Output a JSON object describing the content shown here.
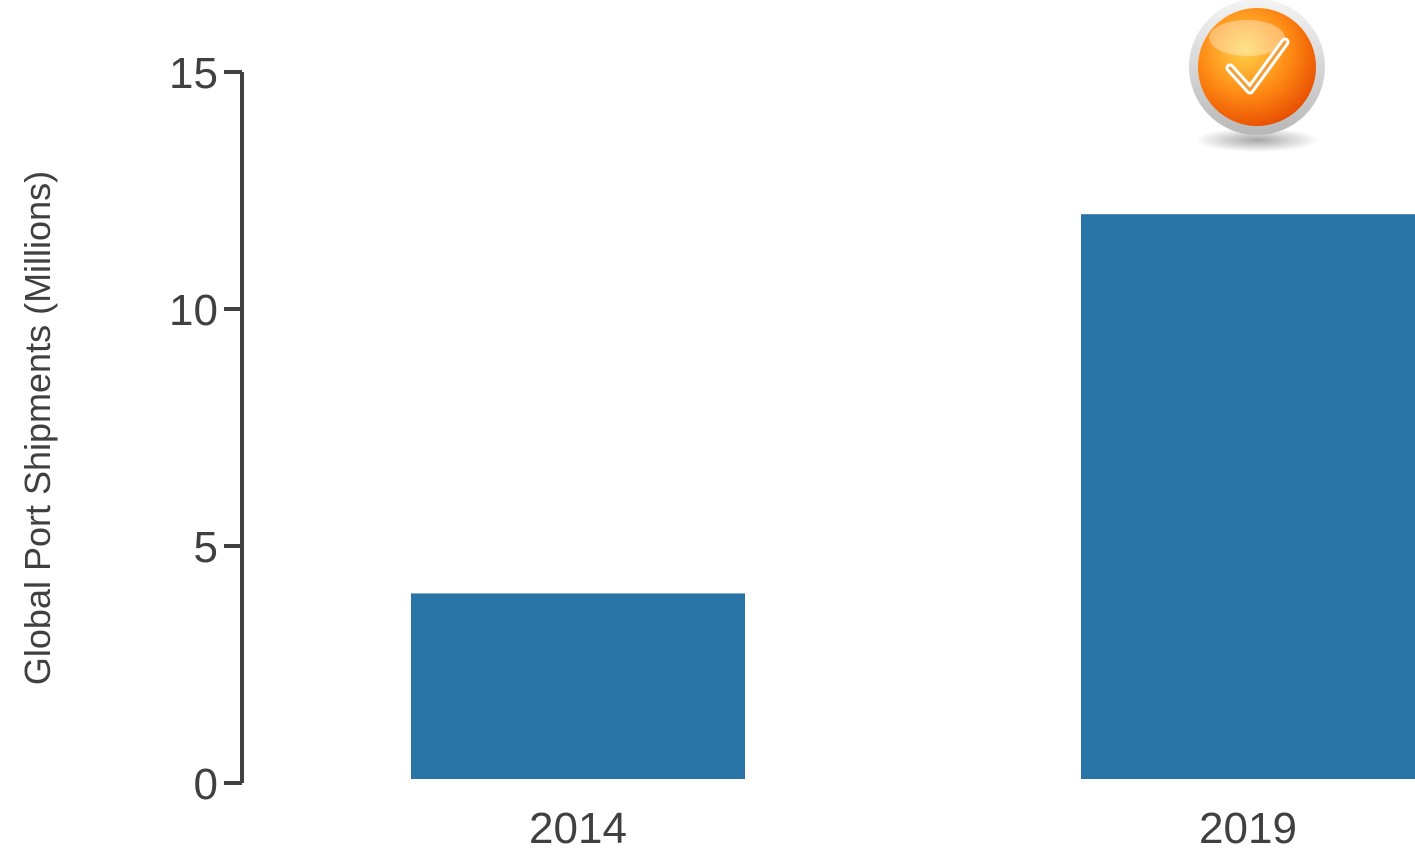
{
  "chart_data": {
    "type": "bar",
    "title": "",
    "xlabel": "",
    "ylabel": "Global Port Shipments (Millions)",
    "categories": [
      "2014",
      "2019"
    ],
    "values": [
      4.0,
      12.0
    ],
    "ylim": [
      0,
      15
    ],
    "yticks": [
      0,
      5,
      10,
      15
    ],
    "grid": false,
    "legend": "none",
    "bar_color": "#2874a6",
    "axis_color": "#404040",
    "highlight_category": "2019",
    "badge_icon": "orange-checkmark-icon"
  }
}
